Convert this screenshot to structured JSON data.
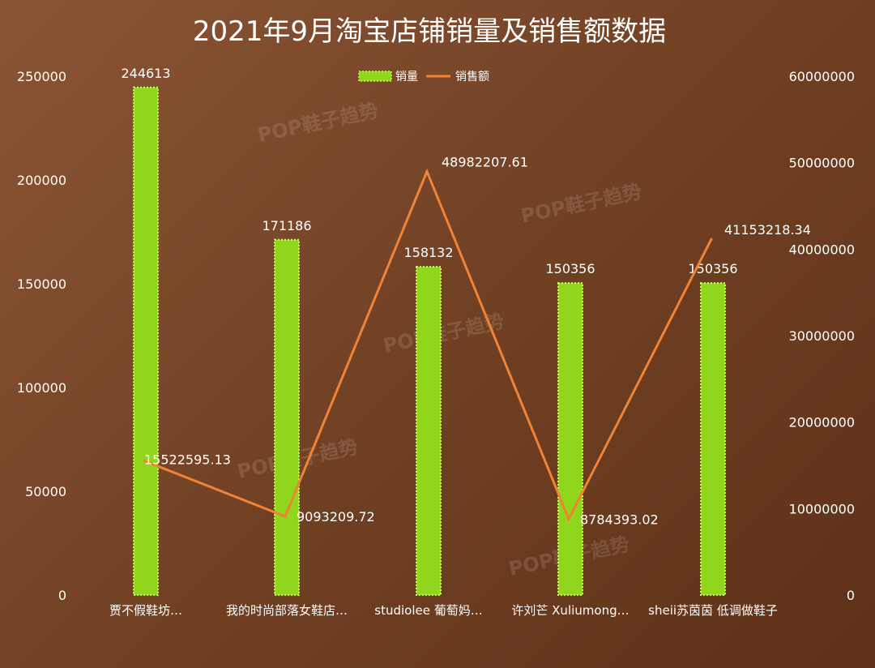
{
  "chart_data": {
    "type": "bar",
    "title": "2021年9月淘宝店铺销量及销售额数据",
    "categories": [
      "贾不假鞋坊…",
      "我的时尚部落女鞋店…",
      "studiolee 葡萄妈…",
      "许刘芒 Xuliumong…",
      "sheii苏茵茵 低调做鞋子"
    ],
    "series": [
      {
        "name": "销量",
        "type": "bar",
        "axis": "left",
        "color": "#8fd61c",
        "values": [
          244613,
          171186,
          158132,
          150356,
          150356
        ],
        "labels": [
          "244613",
          "171186",
          "158132",
          "150356",
          "150356"
        ]
      },
      {
        "name": "销售额",
        "type": "line",
        "axis": "right",
        "color": "#ef8336",
        "values": [
          15522595.13,
          9093209.72,
          48982207.61,
          8784393.02,
          41153218.34
        ],
        "labels": [
          "15522595.13",
          "9093209.72",
          "48982207.61",
          "8784393.02",
          "41153218.34"
        ]
      }
    ],
    "y_left": {
      "min": 0,
      "max": 250000,
      "ticks": [
        "0",
        "50000",
        "100000",
        "150000",
        "200000",
        "250000"
      ]
    },
    "y_right": {
      "min": 0,
      "max": 60000000,
      "ticks": [
        "0",
        "10000000",
        "20000000",
        "30000000",
        "40000000",
        "50000000",
        "60000000"
      ]
    },
    "grid": false,
    "legend_position": "top-center",
    "background_color": "#7a4527",
    "watermark": "POP鞋子趋势"
  }
}
